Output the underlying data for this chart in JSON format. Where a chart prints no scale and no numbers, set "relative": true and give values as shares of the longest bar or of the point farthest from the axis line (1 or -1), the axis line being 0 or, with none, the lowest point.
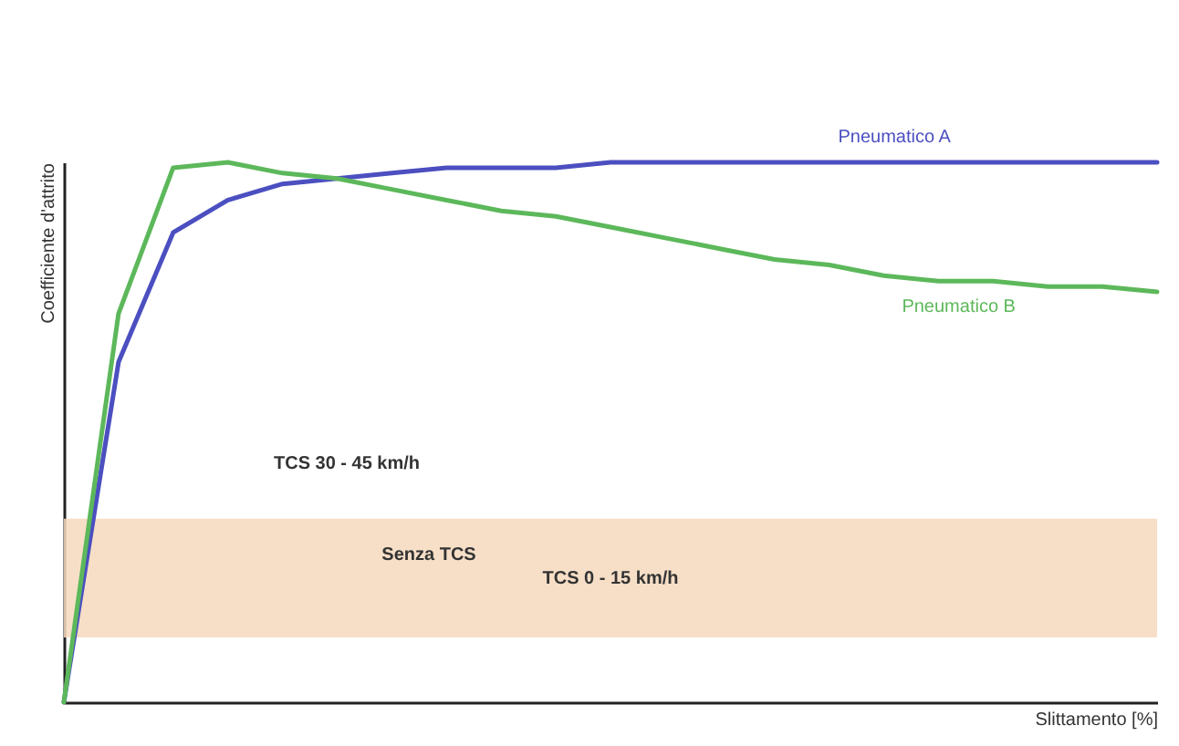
{
  "chart_data": {
    "type": "line",
    "xlabel": "Slittamento [%]",
    "ylabel": "Coefficiente d'attrito",
    "relative": true,
    "grid": false,
    "marker": "none",
    "line_style": "solid",
    "categories": [
      null,
      null,
      null,
      null,
      null,
      null,
      null,
      null,
      null,
      null,
      null,
      null,
      null,
      null,
      null,
      null,
      null,
      null,
      null,
      null,
      null
    ],
    "series": [
      {
        "name": "Pneumatico A",
        "color": "#4b4fc0",
        "values": [
          0,
          0.63,
          0.87,
          0.93,
          0.96,
          0.97,
          0.98,
          0.99,
          0.99,
          0.99,
          1.0,
          1.0,
          1.0,
          1.0,
          1.0,
          1.0,
          1.0,
          1.0,
          1.0,
          1.0,
          1.0
        ]
      },
      {
        "name": "Pneumatico B",
        "color": "#5cb85a",
        "values": [
          0,
          0.72,
          0.99,
          1.0,
          0.98,
          0.97,
          0.95,
          0.93,
          0.91,
          0.9,
          0.88,
          0.86,
          0.84,
          0.82,
          0.81,
          0.79,
          0.78,
          0.78,
          0.77,
          0.77,
          0.76
        ]
      }
    ],
    "annotations": [
      "TCS  30 - 45 km/h",
      "Senza TCS"
    ],
    "bands": [
      {
        "axis": "y",
        "from": 0.12,
        "to": 0.34,
        "label": "TCS  0 - 15 km/h",
        "color": "#f6d9bd"
      }
    ]
  }
}
